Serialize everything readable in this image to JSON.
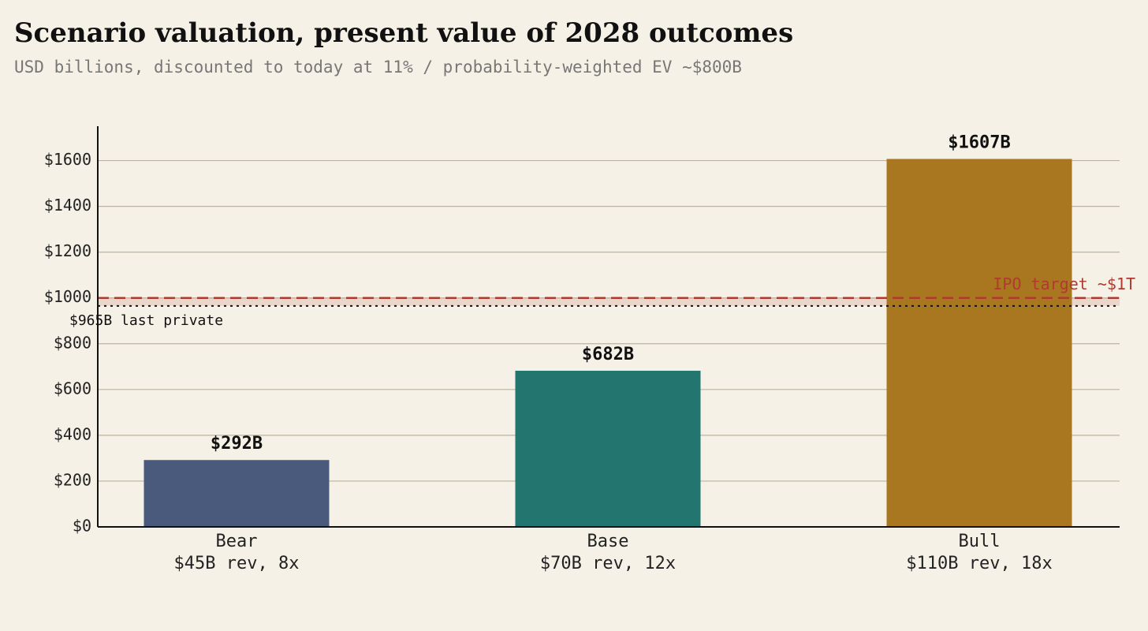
{
  "chart_data": {
    "type": "bar",
    "title": "Scenario valuation, present value of 2028 outcomes",
    "subtitle": "USD billions, discounted to today at 11% / probability-weighted EV ~$800B",
    "categories": [
      [
        "Bear",
        "$45B rev, 8x"
      ],
      [
        "Base",
        "$70B rev, 12x"
      ],
      [
        "Bull",
        "$110B rev, 18x"
      ]
    ],
    "values": [
      292,
      682,
      1607
    ],
    "value_labels": [
      "$292B",
      "$682B",
      "$1607B"
    ],
    "colors": [
      "#4a5a7c",
      "#237670",
      "#a9771f"
    ],
    "ylim": [
      0,
      1750
    ],
    "yticks": [
      {
        "value": 0,
        "label": "$0"
      },
      {
        "value": 200,
        "label": "$200"
      },
      {
        "value": 400,
        "label": "$400"
      },
      {
        "value": 600,
        "label": "$600"
      },
      {
        "value": 800,
        "label": "$800"
      },
      {
        "value": 1000,
        "label": "$1000"
      },
      {
        "value": 1200,
        "label": "$1200"
      },
      {
        "value": 1400,
        "label": "$1400"
      },
      {
        "value": 1600,
        "label": "$1600"
      }
    ],
    "grid": true,
    "reference_lines": [
      {
        "value": 1000,
        "label": "IPO target ~$1T",
        "color": "#b03a2e",
        "style": "dashed"
      },
      {
        "value": 965,
        "label": "$965B last private",
        "color": "#111111",
        "style": "dotted"
      }
    ]
  }
}
